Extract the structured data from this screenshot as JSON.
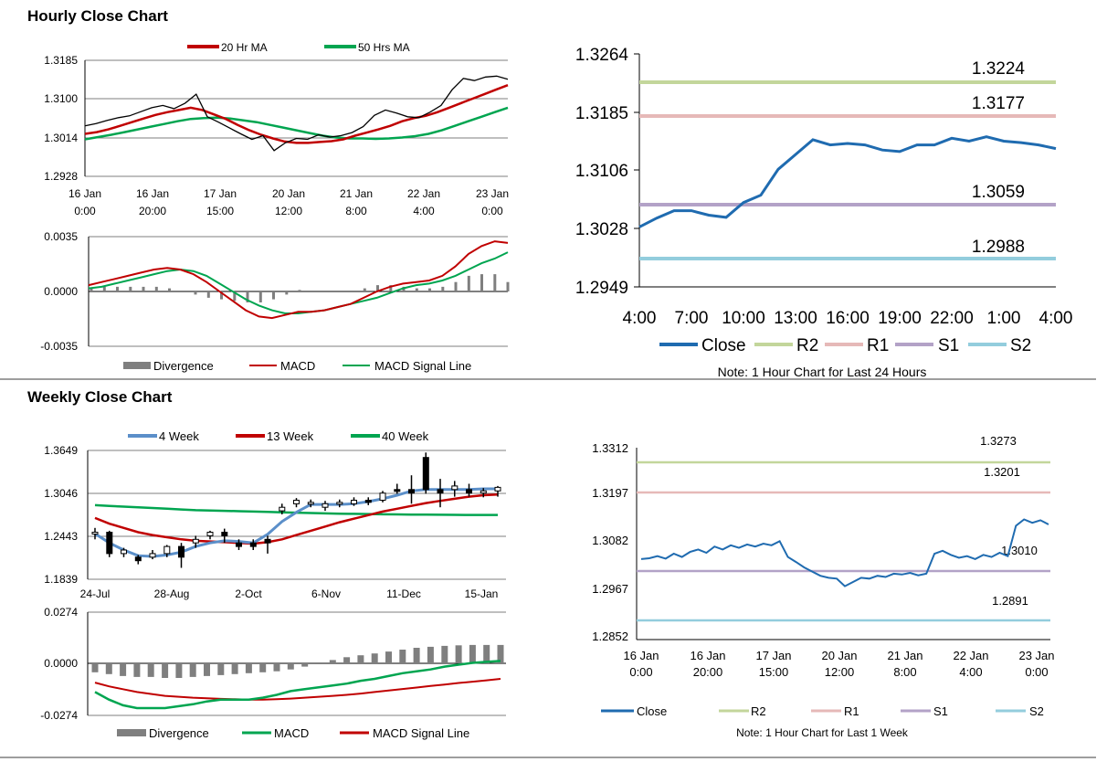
{
  "page": {
    "hourly_title": "Hourly Close Chart",
    "weekly_title": "Weekly Close Chart"
  },
  "colors": {
    "ma20": "#c00000",
    "ma50": "#00a550",
    "blue": "#1f6bb0",
    "ma4w": "#5b8fc9",
    "r2": "#c3d69b",
    "r1": "#e6b9b8",
    "s1": "#b3a2c7",
    "s2": "#93cddd",
    "divergence": "#7f7f7f",
    "macd_red": "#c00000",
    "signal_green": "#00a550"
  },
  "chart_data": [
    {
      "id": "hourly_price",
      "type": "line",
      "legend": [
        "20 Hr MA",
        "50 Hrs MA"
      ],
      "yticks": [
        "1.3185",
        "1.3100",
        "1.3014",
        "1.2928"
      ],
      "ylim": [
        1.2928,
        1.3185
      ],
      "xticks": [
        {
          "l1": "16 Jan",
          "l2": "0:00"
        },
        {
          "l1": "16 Jan",
          "l2": "20:00"
        },
        {
          "l1": "17 Jan",
          "l2": "15:00"
        },
        {
          "l1": "20 Jan",
          "l2": "12:00"
        },
        {
          "l1": "21 Jan",
          "l2": "8:00"
        },
        {
          "l1": "22 Jan",
          "l2": "4:00"
        },
        {
          "l1": "23 Jan",
          "l2": "0:00"
        }
      ],
      "close": [
        1.304,
        1.3045,
        1.3052,
        1.3058,
        1.3062,
        1.3071,
        1.308,
        1.3085,
        1.3078,
        1.309,
        1.311,
        1.306,
        1.3048,
        1.3035,
        1.3022,
        1.301,
        1.3018,
        1.2985,
        1.3002,
        1.3012,
        1.301,
        1.302,
        1.3015,
        1.3018,
        1.3025,
        1.3038,
        1.3063,
        1.3075,
        1.3068,
        1.306,
        1.3058,
        1.307,
        1.3085,
        1.312,
        1.3145,
        1.314,
        1.3148,
        1.315,
        1.3143
      ],
      "ma20": [
        1.3022,
        1.3026,
        1.3032,
        1.304,
        1.3048,
        1.3056,
        1.3064,
        1.307,
        1.3075,
        1.308,
        1.3075,
        1.3065,
        1.3055,
        1.3042,
        1.303,
        1.302,
        1.3012,
        1.3005,
        1.3002,
        1.3002,
        1.3004,
        1.3006,
        1.301,
        1.3018,
        1.3025,
        1.3032,
        1.304,
        1.305,
        1.3057,
        1.3062,
        1.307,
        1.308,
        1.309,
        1.31,
        1.311,
        1.312,
        1.313
      ],
      "ma50": [
        1.301,
        1.3015,
        1.302,
        1.3026,
        1.3032,
        1.3038,
        1.3044,
        1.305,
        1.3055,
        1.3057,
        1.3058,
        1.3056,
        1.3052,
        1.3048,
        1.3042,
        1.3036,
        1.303,
        1.3024,
        1.3018,
        1.3014,
        1.3012,
        1.3012,
        1.3011,
        1.3012,
        1.3014,
        1.3017,
        1.3022,
        1.303,
        1.304,
        1.305,
        1.306,
        1.307,
        1.308
      ]
    },
    {
      "id": "hourly_macd",
      "type": "line",
      "legend": [
        "Divergence",
        "MACD",
        "MACD Signal Line"
      ],
      "yticks": [
        "0.0035",
        "0.0000",
        "-0.0035"
      ],
      "ylim": [
        -0.0035,
        0.0035
      ],
      "macd": [
        0.0004,
        0.0006,
        0.0008,
        0.001,
        0.0012,
        0.0014,
        0.0015,
        0.0014,
        0.0011,
        0.0006,
        0.0,
        -0.0006,
        -0.0012,
        -0.0016,
        -0.0017,
        -0.0015,
        -0.0013,
        -0.0013,
        -0.0012,
        -0.001,
        -0.0008,
        -0.0004,
        0.0,
        0.0003,
        0.0005,
        0.0006,
        0.0007,
        0.001,
        0.0016,
        0.0024,
        0.0029,
        0.0032,
        0.0031
      ],
      "signal": [
        0.0002,
        0.0003,
        0.0005,
        0.0007,
        0.0009,
        0.0011,
        0.0013,
        0.0014,
        0.0013,
        0.001,
        0.0005,
        0.0,
        -0.0005,
        -0.0009,
        -0.0012,
        -0.0014,
        -0.0014,
        -0.0013,
        -0.0012,
        -0.001,
        -0.0008,
        -0.0006,
        -0.0004,
        -0.0001,
        0.0002,
        0.0004,
        0.0005,
        0.0007,
        0.001,
        0.0014,
        0.0018,
        0.0021,
        0.0025
      ],
      "divergence": [
        0.0002,
        0.0003,
        0.0003,
        0.0003,
        0.0003,
        0.0003,
        0.0002,
        0.0,
        -0.0002,
        -0.0004,
        -0.0005,
        -0.0006,
        -0.0007,
        -0.0007,
        -0.0005,
        -0.0002,
        0.0001,
        0.0,
        0.0,
        0.0,
        0.0,
        0.0002,
        0.0004,
        0.0004,
        0.0003,
        0.0002,
        0.0002,
        0.0003,
        0.0006,
        0.001,
        0.0011,
        0.0011,
        0.0006
      ]
    },
    {
      "id": "hourly_pivot",
      "type": "line",
      "note": "Note: 1 Hour Chart for Last 24 Hours",
      "legend": [
        "Close",
        "R2",
        "R1",
        "S1",
        "S2"
      ],
      "yticks": [
        "1.3264",
        "1.3185",
        "1.3106",
        "1.3028",
        "1.2949"
      ],
      "ylim": [
        1.2949,
        1.3264
      ],
      "xticks": [
        "4:00",
        "7:00",
        "10:00",
        "13:00",
        "16:00",
        "19:00",
        "22:00",
        "1:00",
        "4:00"
      ],
      "levels": {
        "R2": 1.3224,
        "R1": 1.3177,
        "S1": 1.3059,
        "S2": 1.2988
      },
      "level_labels": {
        "R2": "1.3224",
        "R1": "1.3177",
        "S1": "1.3059",
        "S2": "1.2988"
      },
      "close": [
        1.303,
        1.3042,
        1.3052,
        1.3052,
        1.3046,
        1.3043,
        1.3063,
        1.3073,
        1.3108,
        1.3128,
        1.3148,
        1.3141,
        1.3143,
        1.3141,
        1.3134,
        1.3132,
        1.3141,
        1.3141,
        1.315,
        1.3146,
        1.3152,
        1.3146,
        1.3144,
        1.3141,
        1.3136
      ]
    },
    {
      "id": "weekly_price",
      "type": "line",
      "legend": [
        "4 Week",
        "13 Week",
        "40 Week"
      ],
      "yticks": [
        "1.3649",
        "1.3046",
        "1.2443",
        "1.1839"
      ],
      "ylim": [
        1.1839,
        1.3649
      ],
      "xticks": [
        "24-Jul",
        "28-Aug",
        "2-Oct",
        "6-Nov",
        "11-Dec",
        "15-Jan"
      ],
      "candles": [
        [
          1.25,
          1.25,
          1.256,
          1.24
        ],
        [
          1.25,
          1.22,
          1.252,
          1.215
        ],
        [
          1.22,
          1.225,
          1.228,
          1.215
        ],
        [
          1.215,
          1.21,
          1.218,
          1.205
        ],
        [
          1.215,
          1.22,
          1.225,
          1.212
        ],
        [
          1.22,
          1.23,
          1.232,
          1.215
        ],
        [
          1.23,
          1.215,
          1.235,
          1.2
        ],
        [
          1.235,
          1.24,
          1.245,
          1.228
        ],
        [
          1.245,
          1.25,
          1.252,
          1.24
        ],
        [
          1.25,
          1.245,
          1.255,
          1.235
        ],
        [
          1.235,
          1.23,
          1.24,
          1.225
        ],
        [
          1.235,
          1.23,
          1.24,
          1.225
        ],
        [
          1.24,
          1.235,
          1.245,
          1.22
        ],
        [
          1.28,
          1.285,
          1.29,
          1.275
        ],
        [
          1.29,
          1.295,
          1.298,
          1.285
        ],
        [
          1.29,
          1.292,
          1.296,
          1.285
        ],
        [
          1.285,
          1.29,
          1.294,
          1.28
        ],
        [
          1.29,
          1.292,
          1.296,
          1.285
        ],
        [
          1.29,
          1.295,
          1.299,
          1.287
        ],
        [
          1.295,
          1.292,
          1.299,
          1.288
        ],
        [
          1.295,
          1.305,
          1.308,
          1.292
        ],
        [
          1.31,
          1.308,
          1.318,
          1.304
        ],
        [
          1.31,
          1.305,
          1.33,
          1.29
        ],
        [
          1.355,
          1.31,
          1.362,
          1.304
        ],
        [
          1.31,
          1.305,
          1.325,
          1.285
        ],
        [
          1.31,
          1.315,
          1.322,
          1.3
        ],
        [
          1.31,
          1.305,
          1.318,
          1.3
        ],
        [
          1.305,
          1.308,
          1.312,
          1.299
        ],
        [
          1.308,
          1.313,
          1.315,
          1.3
        ]
      ],
      "ma4": [
        1.248,
        1.235,
        1.225,
        1.217,
        1.216,
        1.218,
        1.222,
        1.23,
        1.235,
        1.238,
        1.237,
        1.235,
        1.247,
        1.265,
        1.278,
        1.289,
        1.289,
        1.289,
        1.29,
        1.293,
        1.297,
        1.302,
        1.308,
        1.31,
        1.31,
        1.31,
        1.31,
        1.311,
        1.311
      ],
      "ma13": [
        1.27,
        1.262,
        1.256,
        1.25,
        1.246,
        1.243,
        1.24,
        1.238,
        1.237,
        1.236,
        1.235,
        1.234,
        1.236,
        1.24,
        1.246,
        1.252,
        1.258,
        1.264,
        1.269,
        1.274,
        1.279,
        1.283,
        1.287,
        1.291,
        1.294,
        1.297,
        1.3,
        1.302,
        1.303
      ],
      "ma40": [
        1.288,
        1.287,
        1.286,
        1.285,
        1.284,
        1.283,
        1.282,
        1.281,
        1.2805,
        1.28,
        1.2795,
        1.279,
        1.2785,
        1.278,
        1.2775,
        1.277,
        1.2765,
        1.276,
        1.2758,
        1.2755,
        1.2752,
        1.275,
        1.2748,
        1.2746,
        1.2745,
        1.2744,
        1.2743,
        1.2743,
        1.2743
      ]
    },
    {
      "id": "weekly_macd",
      "type": "bar",
      "legend": [
        "Divergence",
        "MACD",
        "MACD Signal Line"
      ],
      "yticks": [
        "0.0274",
        "0.0000",
        "-0.0274"
      ],
      "ylim": [
        -0.0274,
        0.0274
      ],
      "divergence": [
        -0.0045,
        -0.0055,
        -0.0065,
        -0.007,
        -0.007,
        -0.0075,
        -0.0075,
        -0.007,
        -0.0065,
        -0.006,
        -0.0055,
        -0.005,
        -0.0045,
        -0.004,
        -0.003,
        -0.0015,
        0.0,
        0.002,
        0.0035,
        0.0045,
        0.0055,
        0.0065,
        0.0075,
        0.0085,
        0.009,
        0.0095,
        0.0098,
        0.01,
        0.01,
        0.01
      ],
      "macd": [
        -0.015,
        -0.019,
        -0.022,
        -0.0235,
        -0.0235,
        -0.0235,
        -0.0225,
        -0.0215,
        -0.02,
        -0.019,
        -0.019,
        -0.019,
        -0.018,
        -0.0165,
        -0.0145,
        -0.0135,
        -0.0125,
        -0.0115,
        -0.0105,
        -0.009,
        -0.008,
        -0.0065,
        -0.005,
        -0.004,
        -0.003,
        -0.0015,
        -0.0005,
        0.0005,
        0.001,
        0.0015
      ],
      "signal": [
        -0.01,
        -0.012,
        -0.0135,
        -0.015,
        -0.016,
        -0.017,
        -0.0175,
        -0.018,
        -0.0183,
        -0.0186,
        -0.0188,
        -0.019,
        -0.019,
        -0.0188,
        -0.0185,
        -0.018,
        -0.0175,
        -0.017,
        -0.0165,
        -0.0158,
        -0.015,
        -0.0142,
        -0.0134,
        -0.0126,
        -0.0118,
        -0.011,
        -0.0102,
        -0.0095,
        -0.0088,
        -0.008
      ]
    },
    {
      "id": "weekly_pivot",
      "type": "line",
      "note": "Note: 1 Hour Chart for Last 1 Week",
      "legend": [
        "Close",
        "R2",
        "R1",
        "S1",
        "S2"
      ],
      "yticks": [
        "1.3312",
        "1.3197",
        "1.3082",
        "1.2967",
        "1.2852"
      ],
      "ylim": [
        1.2852,
        1.3312
      ],
      "xticks": [
        {
          "l1": "16 Jan",
          "l2": "0:00"
        },
        {
          "l1": "16 Jan",
          "l2": "20:00"
        },
        {
          "l1": "17 Jan",
          "l2": "15:00"
        },
        {
          "l1": "20 Jan",
          "l2": "12:00"
        },
        {
          "l1": "21 Jan",
          "l2": "8:00"
        },
        {
          "l1": "22 Jan",
          "l2": "4:00"
        },
        {
          "l1": "23 Jan",
          "l2": "0:00"
        }
      ],
      "levels": {
        "R2": 1.3273,
        "R1": 1.3201,
        "S1": 1.301,
        "S2": 1.2891
      },
      "level_labels": {
        "R2": "1.3273",
        "R1": "1.3201",
        "S1": "1.3010",
        "S2": "1.2891"
      },
      "close": [
        1.3045,
        1.3047,
        1.3052,
        1.3046,
        1.3058,
        1.305,
        1.3062,
        1.3068,
        1.306,
        1.3075,
        1.3068,
        1.3078,
        1.3072,
        1.308,
        1.3075,
        1.3082,
        1.3078,
        1.3088,
        1.305,
        1.3038,
        1.3025,
        1.3015,
        1.3005,
        1.3,
        1.2998,
        1.298,
        1.299,
        1.3,
        1.2998,
        1.3005,
        1.3002,
        1.301,
        1.3008,
        1.3012,
        1.3006,
        1.301,
        1.3058,
        1.3065,
        1.3055,
        1.3048,
        1.3052,
        1.3045,
        1.3055,
        1.305,
        1.306,
        1.3052,
        1.3125,
        1.314,
        1.3132,
        1.3138,
        1.3128
      ]
    }
  ]
}
